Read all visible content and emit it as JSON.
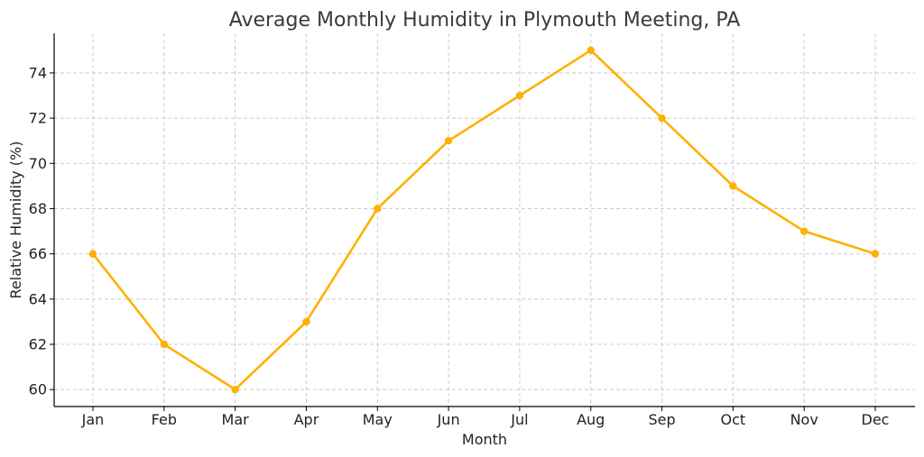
{
  "chart_data": {
    "type": "line",
    "title": "Average Monthly Humidity in Plymouth Meeting, PA",
    "xlabel": "Month",
    "ylabel": "Relative Humidity (%)",
    "categories": [
      "Jan",
      "Feb",
      "Mar",
      "Apr",
      "May",
      "Jun",
      "Jul",
      "Aug",
      "Sep",
      "Oct",
      "Nov",
      "Dec"
    ],
    "series": [
      {
        "name": "Relative Humidity",
        "values": [
          66,
          62,
          60,
          63,
          68,
          71,
          73,
          75,
          72,
          69,
          67,
          66
        ],
        "color": "#FFB000"
      }
    ],
    "ylim": [
      59.25,
      75.75
    ],
    "yticks": [
      60,
      62,
      64,
      66,
      68,
      70,
      72,
      74
    ],
    "grid": true
  }
}
